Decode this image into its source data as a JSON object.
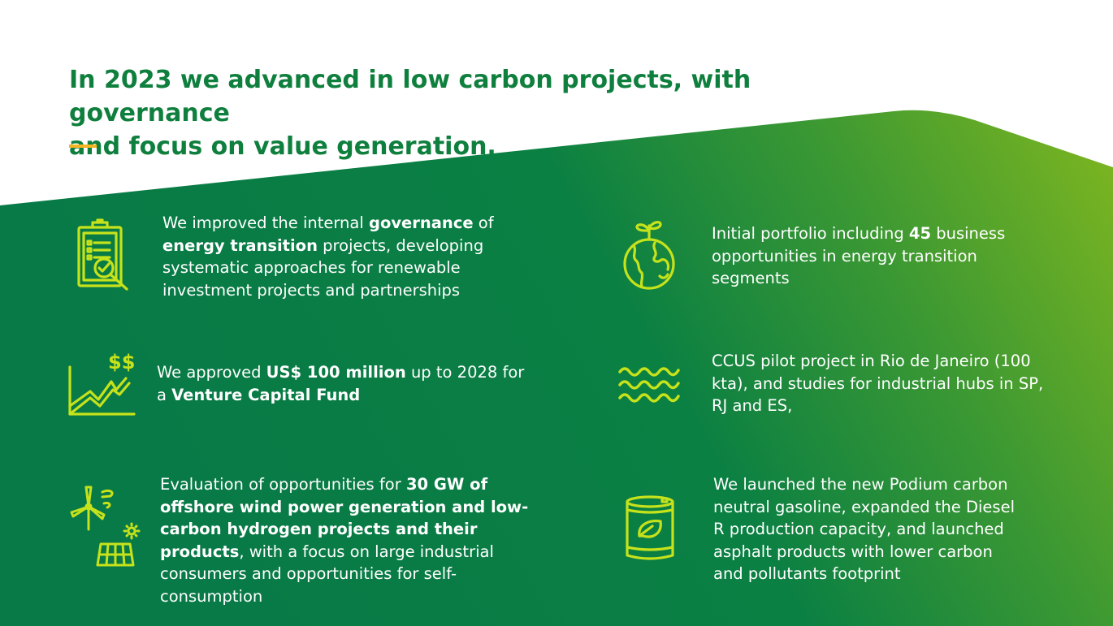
{
  "title": {
    "line1": "In 2023 we advanced in low carbon projects, with governance",
    "line2": "and focus on value generation."
  },
  "colors": {
    "title": "#0f7f3e",
    "accent_bar": "#f5b523",
    "icon": "#c6e21b",
    "bg_dark_green": "#087a47",
    "bg_light_green": "#7ab421",
    "text": "#ffffff"
  },
  "items": [
    {
      "icon": "clipboard-checklist-icon",
      "segments": [
        {
          "t": "We improved the internal ",
          "b": false
        },
        {
          "t": "governance",
          "b": true
        },
        {
          "t": " of ",
          "b": false
        },
        {
          "t": "energy transition",
          "b": true
        },
        {
          "t": " projects, developing systematic approaches for renewable investment projects and partnerships",
          "b": false
        }
      ]
    },
    {
      "icon": "globe-sprout-icon",
      "segments": [
        {
          "t": "Initial portfolio including ",
          "b": false
        },
        {
          "t": "45",
          "b": true
        },
        {
          "t": " business opportunities in energy transition segments",
          "b": false
        }
      ]
    },
    {
      "icon": "growth-chart-dollar-icon",
      "segments": [
        {
          "t": "We approved ",
          "b": false
        },
        {
          "t": "US$ 100 million",
          "b": true
        },
        {
          "t": " up to 2028 for a ",
          "b": false
        },
        {
          "t": "Venture Capital Fund",
          "b": true
        }
      ]
    },
    {
      "icon": "waves-icon",
      "segments": [
        {
          "t": "CCUS pilot project in Rio de Janeiro (100 kta), and studies for industrial hubs in SP, RJ and ES,",
          "b": false
        }
      ]
    },
    {
      "icon": "wind-solar-icon",
      "segments": [
        {
          "t": "Evaluation of opportunities for ",
          "b": false
        },
        {
          "t": "30 GW of offshore wind power generation and low-carbon hydrogen projects and their products",
          "b": true
        },
        {
          "t": ", with a focus on large industrial consumers and opportunities for self-consumption",
          "b": false
        }
      ]
    },
    {
      "icon": "fuel-barrel-leaf-icon",
      "segments": [
        {
          "t": "We launched the new Podium carbon neutral gasoline, expanded the Diesel R production capacity, and launched asphalt products with lower carbon and pollutants footprint",
          "b": false
        }
      ]
    }
  ]
}
